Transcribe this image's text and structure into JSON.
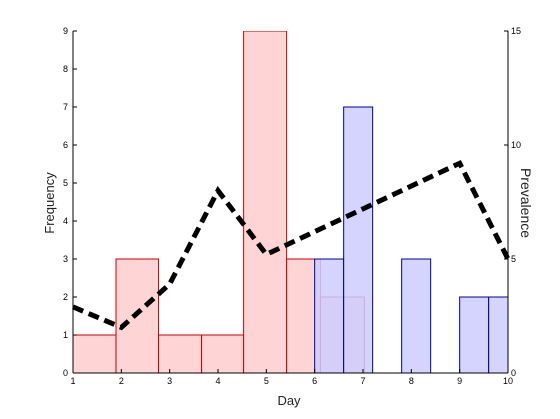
{
  "chart_data": {
    "type": "bar",
    "xlabel": "Day",
    "ylabel": "Frequency",
    "y2label": "Prevalence",
    "xlim": [
      1,
      10
    ],
    "ylim": [
      0,
      9
    ],
    "y2lim": [
      0,
      15
    ],
    "xticks": [
      1,
      2,
      3,
      4,
      5,
      6,
      7,
      8,
      9,
      10
    ],
    "yticks": [
      0,
      1,
      2,
      3,
      4,
      5,
      6,
      7,
      8,
      9
    ],
    "y2ticks": [
      0,
      5,
      10,
      15
    ],
    "grid": false,
    "colors": {
      "red_fill": "#ffcccc",
      "red_edge": "#cc0000",
      "blue_fill": "#ccccff",
      "blue_edge": "#000099",
      "line": "#000000"
    },
    "histograms": [
      {
        "color": "red",
        "bins": [
          {
            "x0": 1.0,
            "x1": 1.89,
            "value": 1
          },
          {
            "x0": 1.89,
            "x1": 2.77,
            "value": 3
          },
          {
            "x0": 2.77,
            "x1": 3.66,
            "value": 1
          },
          {
            "x0": 3.66,
            "x1": 4.53,
            "value": 1
          },
          {
            "x0": 4.53,
            "x1": 5.42,
            "value": 9
          },
          {
            "x0": 5.42,
            "x1": 6.12,
            "value": 3
          },
          {
            "x0": 6.12,
            "x1": 7.03,
            "value": 2
          }
        ]
      },
      {
        "color": "blue",
        "bins": [
          {
            "x0": 6.0,
            "x1": 6.6,
            "value": 3
          },
          {
            "x0": 6.6,
            "x1": 7.2,
            "value": 7
          },
          {
            "x0": 7.2,
            "x1": 7.8,
            "value": 0
          },
          {
            "x0": 7.8,
            "x1": 8.4,
            "value": 3
          },
          {
            "x0": 8.4,
            "x1": 9.0,
            "value": 0
          },
          {
            "x0": 9.0,
            "x1": 9.6,
            "value": 2
          },
          {
            "x0": 9.6,
            "x1": 10.2,
            "value": 2
          }
        ]
      }
    ],
    "line_series": {
      "style": "dashed",
      "axis": "right",
      "x": [
        1,
        2,
        3,
        4,
        5,
        6,
        7,
        8,
        9,
        10
      ],
      "y": [
        2.9,
        2.0,
        3.9,
        8.0,
        5.2,
        6.2,
        7.2,
        8.2,
        9.2,
        5.0
      ]
    }
  }
}
